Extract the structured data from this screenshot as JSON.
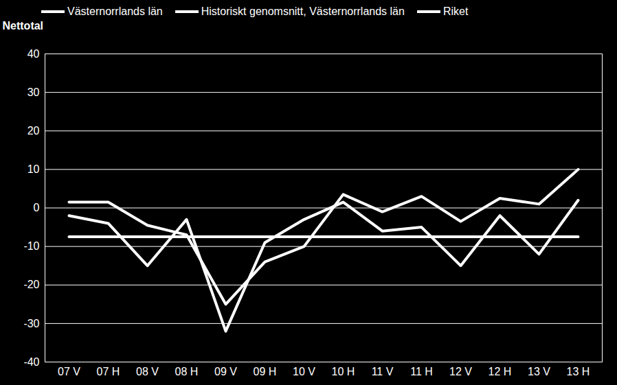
{
  "chart_data": {
    "type": "line",
    "y_label": "Nettotal",
    "categories": [
      "07 V",
      "07 H",
      "08 V",
      "08 H",
      "09 V",
      "09 H",
      "10 V",
      "10 H",
      "11 V",
      "11 H",
      "12 V",
      "12 H",
      "13 V",
      "13 H"
    ],
    "series": [
      {
        "name": "Västernorrlands län",
        "color": "#ffffff",
        "values": [
          -2,
          -4,
          -15,
          -3,
          -32,
          -9,
          -3,
          1.5,
          -6,
          -5,
          -15,
          -2,
          -12,
          2
        ]
      },
      {
        "name": "Historiskt genomsnitt, Västernorrlands län",
        "color": "#ffffff",
        "values": [
          -7.5,
          -7.5,
          -7.5,
          -7.5,
          -7.5,
          -7.5,
          -7.5,
          -7.5,
          -7.5,
          -7.5,
          -7.5,
          -7.5,
          -7.5,
          -7.5
        ]
      },
      {
        "name": "Riket",
        "color": "#ffffff",
        "values": [
          1.5,
          1.5,
          -4.5,
          -7,
          -25,
          -14,
          -10,
          3.5,
          -1,
          3,
          -3.5,
          2.5,
          1,
          10
        ]
      }
    ],
    "ylim": [
      -40,
      40
    ],
    "yticks": [
      -40,
      -30,
      -20,
      -10,
      0,
      10,
      20,
      30,
      40
    ],
    "grid": true,
    "legend": "top"
  }
}
